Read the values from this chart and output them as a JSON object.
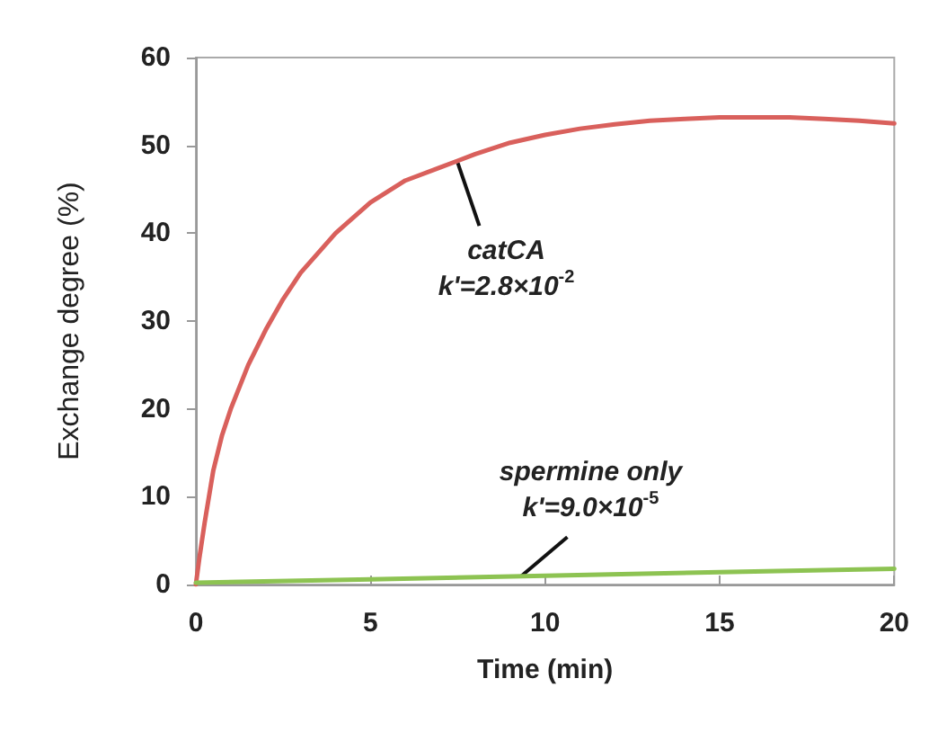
{
  "chart_data": {
    "type": "line",
    "xlabel": "Time (min)",
    "ylabel": "Exchange degree (%)",
    "xlim": [
      0,
      20
    ],
    "xticks": [
      0,
      5,
      10,
      15,
      20
    ],
    "ylim": [
      0,
      60
    ],
    "yticks": [
      0,
      10,
      20,
      30,
      40,
      50,
      60
    ],
    "grid": false,
    "marker": "none",
    "line_style": "solid",
    "series": [
      {
        "color": "#d9605c",
        "x": [
          0,
          0.1,
          0.25,
          0.5,
          0.75,
          1,
          1.5,
          2,
          2.5,
          3,
          4,
          5,
          6,
          7,
          8,
          9,
          10,
          11,
          12,
          13,
          14,
          15,
          16,
          17,
          18,
          19,
          20
        ],
        "values": [
          0,
          3,
          7,
          13,
          17,
          20,
          25,
          29,
          32.5,
          35.5,
          40,
          43.5,
          46,
          47.5,
          49,
          50.3,
          51.2,
          51.9,
          52.4,
          52.8,
          53,
          53.2,
          53.2,
          53.2,
          53,
          52.8,
          52.5
        ]
      },
      {
        "color": "#8dc352",
        "x": [
          0,
          5,
          10,
          15,
          20
        ],
        "values": [
          0.2,
          0.6,
          1.0,
          1.4,
          1.8
        ]
      }
    ],
    "annotations": [
      {
        "text": "catCA\nk'=2.8×10$^{-2}$",
        "x": 7.5,
        "y": 48
      },
      {
        "text": "spermine only\nk'=9.0×10$^{-5}$",
        "x": 9.3,
        "y": 0.9
      }
    ]
  }
}
